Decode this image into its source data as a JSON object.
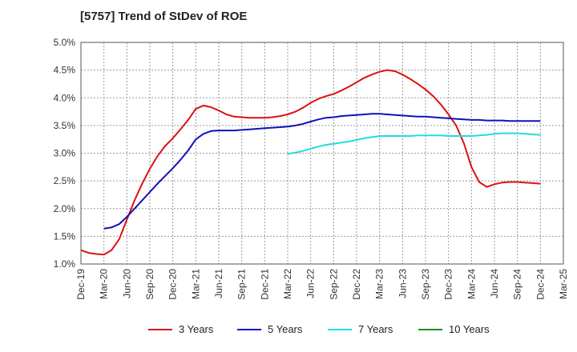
{
  "title": "[5757]  Trend of StDev of ROE",
  "chart_data": {
    "type": "line",
    "title": "[5757]  Trend of StDev of ROE",
    "xlabel": "",
    "ylabel": "",
    "x_ticks": [
      "Dec-19",
      "Mar-20",
      "Jun-20",
      "Sep-20",
      "Dec-20",
      "Mar-21",
      "Jun-21",
      "Sep-21",
      "Dec-21",
      "Mar-22",
      "Jun-22",
      "Sep-22",
      "Dec-22",
      "Mar-23",
      "Jun-23",
      "Sep-23",
      "Dec-23",
      "Mar-24",
      "Jun-24",
      "Sep-24",
      "Dec-24",
      "Mar-25"
    ],
    "y_ticks": [
      "1.0%",
      "1.5%",
      "2.0%",
      "2.5%",
      "3.0%",
      "3.5%",
      "4.0%",
      "4.5%",
      "5.0%"
    ],
    "ylim": [
      1.0,
      5.0
    ],
    "y_unit": "%",
    "grid": true,
    "legend_position": "bottom",
    "series": [
      {
        "name": "3 Years",
        "color": "#dd1111",
        "points": [
          [
            "Dec-19",
            1.25
          ],
          [
            "Jan-20",
            1.2
          ],
          [
            "Feb-20",
            1.18
          ],
          [
            "Mar-20",
            1.17
          ],
          [
            "Apr-20",
            1.25
          ],
          [
            "May-20",
            1.45
          ],
          [
            "Jun-20",
            1.8
          ],
          [
            "Jul-20",
            2.15
          ],
          [
            "Aug-20",
            2.45
          ],
          [
            "Sep-20",
            2.72
          ],
          [
            "Oct-20",
            2.95
          ],
          [
            "Nov-20",
            3.13
          ],
          [
            "Dec-20",
            3.27
          ],
          [
            "Jan-21",
            3.43
          ],
          [
            "Feb-21",
            3.6
          ],
          [
            "Mar-21",
            3.8
          ],
          [
            "Apr-21",
            3.86
          ],
          [
            "May-21",
            3.83
          ],
          [
            "Jun-21",
            3.77
          ],
          [
            "Jul-21",
            3.7
          ],
          [
            "Aug-21",
            3.66
          ],
          [
            "Sep-21",
            3.65
          ],
          [
            "Oct-21",
            3.64
          ],
          [
            "Nov-21",
            3.64
          ],
          [
            "Dec-21",
            3.64
          ],
          [
            "Jan-22",
            3.65
          ],
          [
            "Feb-22",
            3.67
          ],
          [
            "Mar-22",
            3.7
          ],
          [
            "Apr-22",
            3.75
          ],
          [
            "May-22",
            3.82
          ],
          [
            "Jun-22",
            3.91
          ],
          [
            "Jul-22",
            3.98
          ],
          [
            "Aug-22",
            4.03
          ],
          [
            "Sep-22",
            4.07
          ],
          [
            "Oct-22",
            4.13
          ],
          [
            "Nov-22",
            4.2
          ],
          [
            "Dec-22",
            4.28
          ],
          [
            "Jan-23",
            4.36
          ],
          [
            "Feb-23",
            4.42
          ],
          [
            "Mar-23",
            4.47
          ],
          [
            "Apr-23",
            4.5
          ],
          [
            "May-23",
            4.48
          ],
          [
            "Jun-23",
            4.42
          ],
          [
            "Jul-23",
            4.34
          ],
          [
            "Aug-23",
            4.25
          ],
          [
            "Sep-23",
            4.15
          ],
          [
            "Oct-23",
            4.03
          ],
          [
            "Nov-23",
            3.88
          ],
          [
            "Dec-23",
            3.7
          ],
          [
            "Jan-24",
            3.5
          ],
          [
            "Feb-24",
            3.18
          ],
          [
            "Mar-24",
            2.75
          ],
          [
            "Apr-24",
            2.48
          ],
          [
            "May-24",
            2.39
          ],
          [
            "Jun-24",
            2.44
          ],
          [
            "Jul-24",
            2.47
          ],
          [
            "Aug-24",
            2.48
          ],
          [
            "Sep-24",
            2.48
          ],
          [
            "Oct-24",
            2.47
          ],
          [
            "Nov-24",
            2.46
          ],
          [
            "Dec-24",
            2.45
          ]
        ]
      },
      {
        "name": "5 Years",
        "color": "#1111bb",
        "points": [
          [
            "Mar-20",
            1.64
          ],
          [
            "Apr-20",
            1.66
          ],
          [
            "May-20",
            1.72
          ],
          [
            "Jun-20",
            1.85
          ],
          [
            "Jul-20",
            2.0
          ],
          [
            "Aug-20",
            2.15
          ],
          [
            "Sep-20",
            2.3
          ],
          [
            "Oct-20",
            2.45
          ],
          [
            "Nov-20",
            2.59
          ],
          [
            "Dec-20",
            2.73
          ],
          [
            "Jan-21",
            2.88
          ],
          [
            "Feb-21",
            3.05
          ],
          [
            "Mar-21",
            3.25
          ],
          [
            "Apr-21",
            3.35
          ],
          [
            "May-21",
            3.4
          ],
          [
            "Jun-21",
            3.41
          ],
          [
            "Jul-21",
            3.41
          ],
          [
            "Aug-21",
            3.41
          ],
          [
            "Sep-21",
            3.42
          ],
          [
            "Oct-21",
            3.43
          ],
          [
            "Nov-21",
            3.44
          ],
          [
            "Dec-21",
            3.45
          ],
          [
            "Jan-22",
            3.46
          ],
          [
            "Feb-22",
            3.47
          ],
          [
            "Mar-22",
            3.48
          ],
          [
            "Apr-22",
            3.5
          ],
          [
            "May-22",
            3.53
          ],
          [
            "Jun-22",
            3.57
          ],
          [
            "Jul-22",
            3.61
          ],
          [
            "Aug-22",
            3.64
          ],
          [
            "Sep-22",
            3.65
          ],
          [
            "Oct-22",
            3.67
          ],
          [
            "Nov-22",
            3.68
          ],
          [
            "Dec-22",
            3.69
          ],
          [
            "Jan-23",
            3.7
          ],
          [
            "Feb-23",
            3.71
          ],
          [
            "Mar-23",
            3.71
          ],
          [
            "Apr-23",
            3.7
          ],
          [
            "May-23",
            3.69
          ],
          [
            "Jun-23",
            3.68
          ],
          [
            "Jul-23",
            3.67
          ],
          [
            "Aug-23",
            3.66
          ],
          [
            "Sep-23",
            3.66
          ],
          [
            "Oct-23",
            3.65
          ],
          [
            "Nov-23",
            3.64
          ],
          [
            "Dec-23",
            3.63
          ],
          [
            "Jan-24",
            3.62
          ],
          [
            "Feb-24",
            3.61
          ],
          [
            "Mar-24",
            3.6
          ],
          [
            "Apr-24",
            3.6
          ],
          [
            "May-24",
            3.59
          ],
          [
            "Jun-24",
            3.59
          ],
          [
            "Jul-24",
            3.59
          ],
          [
            "Aug-24",
            3.58
          ],
          [
            "Sep-24",
            3.58
          ],
          [
            "Oct-24",
            3.58
          ],
          [
            "Nov-24",
            3.58
          ],
          [
            "Dec-24",
            3.58
          ]
        ]
      },
      {
        "name": "7 Years",
        "color": "#22dddd",
        "points": [
          [
            "Mar-22",
            2.99
          ],
          [
            "Apr-22",
            3.01
          ],
          [
            "May-22",
            3.04
          ],
          [
            "Jun-22",
            3.08
          ],
          [
            "Jul-22",
            3.12
          ],
          [
            "Aug-22",
            3.15
          ],
          [
            "Sep-22",
            3.17
          ],
          [
            "Oct-22",
            3.19
          ],
          [
            "Nov-22",
            3.21
          ],
          [
            "Dec-22",
            3.24
          ],
          [
            "Jan-23",
            3.27
          ],
          [
            "Feb-23",
            3.29
          ],
          [
            "Mar-23",
            3.31
          ],
          [
            "Apr-23",
            3.31
          ],
          [
            "May-23",
            3.31
          ],
          [
            "Jun-23",
            3.31
          ],
          [
            "Jul-23",
            3.31
          ],
          [
            "Aug-23",
            3.32
          ],
          [
            "Sep-23",
            3.32
          ],
          [
            "Oct-23",
            3.32
          ],
          [
            "Nov-23",
            3.32
          ],
          [
            "Dec-23",
            3.31
          ],
          [
            "Jan-24",
            3.31
          ],
          [
            "Feb-24",
            3.31
          ],
          [
            "Mar-24",
            3.31
          ],
          [
            "Apr-24",
            3.32
          ],
          [
            "May-24",
            3.33
          ],
          [
            "Jun-24",
            3.35
          ],
          [
            "Jul-24",
            3.36
          ],
          [
            "Aug-24",
            3.36
          ],
          [
            "Sep-24",
            3.36
          ],
          [
            "Oct-24",
            3.35
          ],
          [
            "Nov-24",
            3.34
          ],
          [
            "Dec-24",
            3.33
          ]
        ]
      },
      {
        "name": "10 Years",
        "color": "#228822",
        "points": []
      }
    ]
  }
}
